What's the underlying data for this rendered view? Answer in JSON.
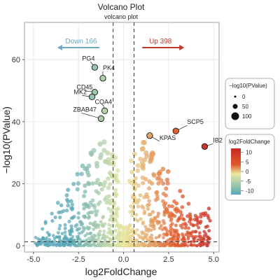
{
  "chart_data": {
    "type": "scatter",
    "title": "Volcano Plot",
    "subtitle": "volcano plot",
    "xlabel": "log2FoldChange",
    "ylabel": "−log10(PValue)",
    "xlim": [
      -5.5,
      5.3
    ],
    "ylim": [
      -2,
      72
    ],
    "x_ticks": [
      -5.0,
      -2.5,
      0.0,
      2.5,
      5.0
    ],
    "x_tick_labels": [
      "-5.0",
      "-2.5",
      "0.0",
      "2.5",
      "5.0"
    ],
    "y_ticks": [
      0,
      20,
      40,
      60
    ],
    "y_tick_labels": [
      "0",
      "20",
      "40",
      "60"
    ],
    "grid": true,
    "thresholds": {
      "fc_left": -0.58,
      "fc_right": 0.58,
      "pvalue_line": 1.3
    },
    "annotations": {
      "down": {
        "text": "Down 166",
        "color": "#6fa8c4"
      },
      "up": {
        "text": "Up 398",
        "color": "#c0392b"
      }
    },
    "labeled_genes": [
      {
        "name": "PG4",
        "x": -1.6,
        "y": 57.5
      },
      {
        "name": "PK4",
        "x": -1.15,
        "y": 54.0
      },
      {
        "name": "CD45",
        "x": -1.6,
        "y": 49.5
      },
      {
        "name": "MK2",
        "x": -1.75,
        "y": 48.0
      },
      {
        "name": "CQA4",
        "x": -1.05,
        "y": 43.5
      },
      {
        "name": "ZBAB47",
        "x": -1.25,
        "y": 41.0
      },
      {
        "name": "KPAS",
        "x": 1.45,
        "y": 35.5
      },
      {
        "name": "SCP5",
        "x": 2.9,
        "y": 37.0
      },
      {
        "name": "IB2",
        "x": 4.5,
        "y": 32.0
      }
    ],
    "legend_size": {
      "title": "−log10(PValue)",
      "entries": [
        {
          "label": "0",
          "value": 0
        },
        {
          "label": "50",
          "value": 50
        },
        {
          "label": "100",
          "value": 100
        }
      ]
    },
    "legend_color": {
      "title": "log2FoldChange",
      "ticks": [
        {
          "label": "10",
          "value": 10
        },
        {
          "label": "5",
          "value": 5
        },
        {
          "label": "0",
          "value": 0
        },
        {
          "label": "-5",
          "value": -5
        },
        {
          "label": "-10",
          "value": -10
        }
      ],
      "range": [
        -12,
        12
      ]
    },
    "colors": {
      "neg": "#5aa8b8",
      "mid": "#e8e8a0",
      "pos": "#e05a2b",
      "strong_pos": "#c62828"
    }
  }
}
